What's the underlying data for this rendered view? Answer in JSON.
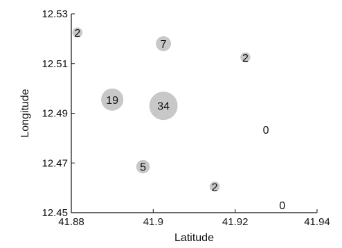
{
  "chart_data": {
    "type": "scatter",
    "title": "",
    "xlabel": "Latitude",
    "ylabel": "Longitude",
    "xlim": [
      41.88,
      41.94
    ],
    "ylim": [
      12.45,
      12.53
    ],
    "xticks": [
      "41.88",
      "41.9",
      "41.92",
      "41.94"
    ],
    "yticks": [
      "12.45",
      "12.47",
      "12.49",
      "12.51",
      "12.53"
    ],
    "xtick_values": [
      41.88,
      41.9,
      41.92,
      41.94
    ],
    "ytick_values": [
      12.45,
      12.47,
      12.49,
      12.51,
      12.53
    ],
    "grid": false,
    "bubble_color": "#c8c8c8",
    "points": [
      {
        "x": 41.8815,
        "y": 12.5225,
        "label": "2"
      },
      {
        "x": 41.9025,
        "y": 12.518,
        "label": "7"
      },
      {
        "x": 41.9225,
        "y": 12.5125,
        "label": "2"
      },
      {
        "x": 41.89,
        "y": 12.4955,
        "label": "19"
      },
      {
        "x": 41.9025,
        "y": 12.493,
        "label": "34"
      },
      {
        "x": 41.9275,
        "y": 12.4835,
        "label": "0"
      },
      {
        "x": 41.8975,
        "y": 12.4685,
        "label": "5"
      },
      {
        "x": 41.915,
        "y": 12.4605,
        "label": "2"
      },
      {
        "x": 41.9315,
        "y": 12.453,
        "label": "0"
      }
    ]
  }
}
